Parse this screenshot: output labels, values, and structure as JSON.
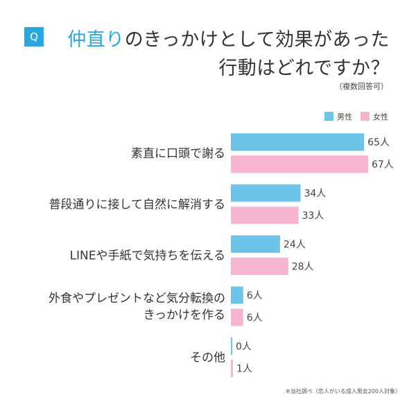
{
  "header": {
    "q_label": "Q",
    "title_line1_highlight": "仲直り",
    "title_line1_rest": "のきっかけとして効果があった",
    "title_line2": "行動はどれですか？",
    "note": "（複数回答可）"
  },
  "colors": {
    "male": "#6cc4e8",
    "female": "#f7b4d0",
    "accent": "#29a8e0"
  },
  "legend": {
    "male": "男性",
    "female": "女性"
  },
  "footnote": "※当社調べ（恋人がいる成人男女200人対象）",
  "chart_data": {
    "type": "bar",
    "orientation": "horizontal",
    "categories": [
      [
        "素直に口頭で謝る"
      ],
      [
        "普段通りに接して自然に解消する"
      ],
      [
        "LINEや手紙で気持ちを伝える"
      ],
      [
        "外食やプレゼントなど気分転換の",
        "きっかけを作る"
      ],
      [
        "その他"
      ]
    ],
    "series": [
      {
        "name": "男性",
        "values": [
          65,
          34,
          24,
          6,
          0
        ],
        "labels": [
          "65人",
          "34人",
          "24人",
          "6人",
          "0人"
        ]
      },
      {
        "name": "女性",
        "values": [
          67,
          33,
          28,
          6,
          1
        ],
        "labels": [
          "67人",
          "33人",
          "28人",
          "6人",
          "1人"
        ]
      }
    ],
    "unit": "人",
    "xlim": [
      0,
      67
    ],
    "legend_position": "top-right",
    "grid": false
  }
}
